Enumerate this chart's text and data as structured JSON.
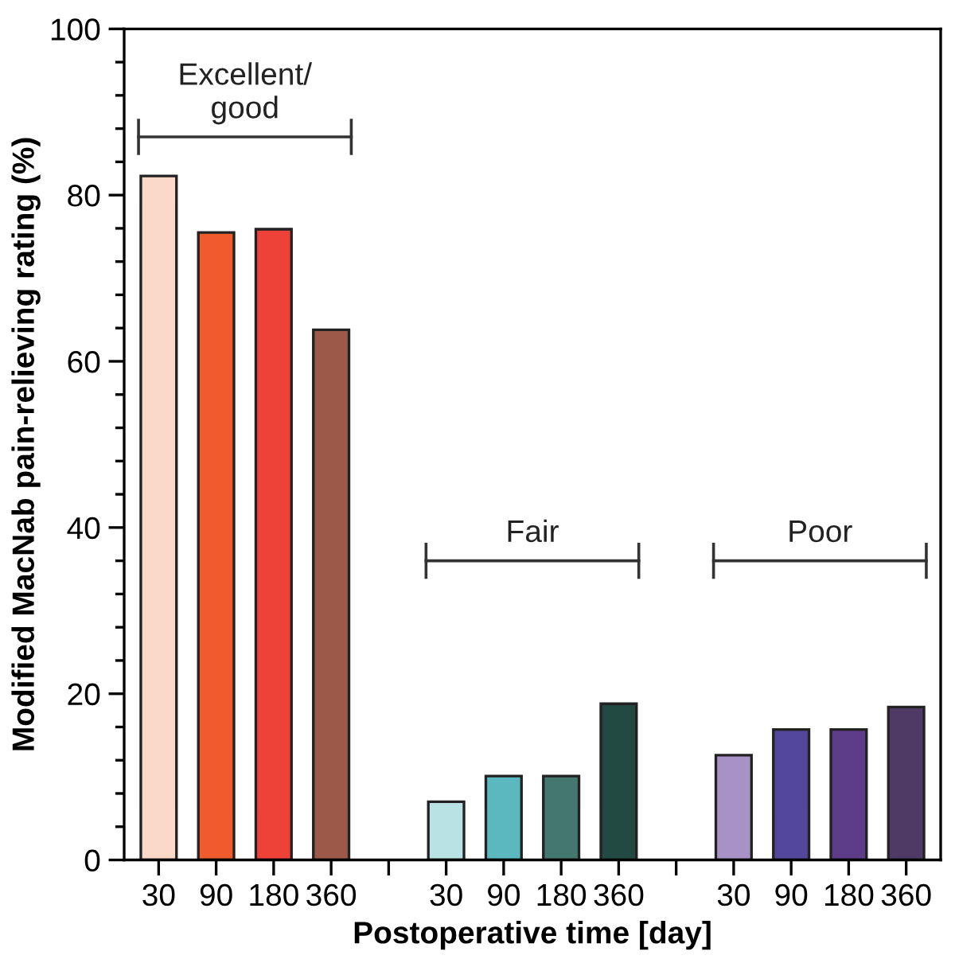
{
  "chart_data": {
    "type": "bar",
    "xlabel": "Postoperative time [day]",
    "ylabel": "Modified MacNab pain-relieving rating (%)",
    "categories": [
      "30",
      "90",
      "180",
      "360",
      null,
      "30",
      "90",
      "180",
      "360",
      null,
      "30",
      "90",
      "180",
      "360"
    ],
    "values": [
      82.3,
      75.5,
      75.9,
      63.8,
      null,
      7.0,
      10.1,
      10.1,
      18.8,
      null,
      12.6,
      15.7,
      15.7,
      18.4
    ],
    "colors": [
      "#fad9c8",
      "#f05a2d",
      "#ee4238",
      "#9c5848",
      null,
      "#b8e2e3",
      "#5ab8be",
      "#44786e",
      "#224a42",
      null,
      "#a891c5",
      "#52479a",
      "#5d3d8a",
      "#4f3a65"
    ],
    "ylim": [
      0,
      100
    ],
    "yticks": [
      0,
      20,
      40,
      60,
      80,
      100
    ],
    "annotations": [
      "Excellent/\ngood",
      "Fair",
      "Poor"
    ],
    "grid": false,
    "legend": false
  }
}
